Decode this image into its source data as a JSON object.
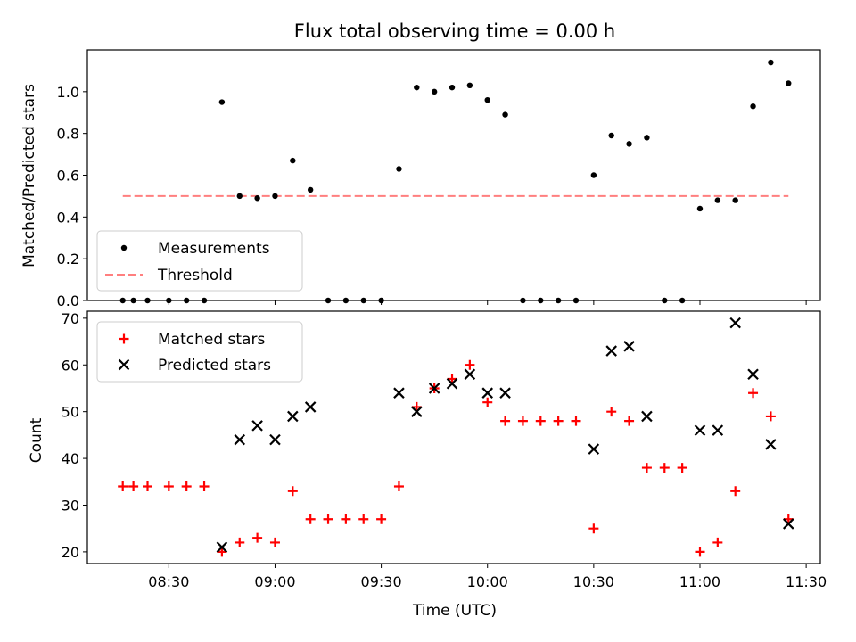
{
  "title": "Flux total observing time = 0.00 h",
  "chart_data": [
    {
      "type": "scatter",
      "panel": "top",
      "ylabel": "Matched/Predicted stars",
      "xlabel": "",
      "x_ticks": [
        "08:30",
        "09:00",
        "09:30",
        "10:00",
        "10:30",
        "11:00",
        "11:30"
      ],
      "x_tick_labels_visible": false,
      "xlim": [
        "08:07",
        "11:34"
      ],
      "ylim": [
        0,
        1.2
      ],
      "y_ticks": [
        "0.0",
        "0.2",
        "0.4",
        "0.6",
        "0.8",
        "1.0"
      ],
      "grid": false,
      "legend_position": "lower-left",
      "colors": {
        "measurements": "#000000",
        "threshold": "#ff7f7f"
      },
      "series": [
        {
          "name": "Measurements",
          "marker": "dot",
          "x": [
            "08:17",
            "08:20",
            "08:24",
            "08:30",
            "08:35",
            "08:40",
            "08:45",
            "08:50",
            "08:55",
            "09:00",
            "09:05",
            "09:10",
            "09:15",
            "09:20",
            "09:25",
            "09:30",
            "09:35",
            "09:40",
            "09:45",
            "09:50",
            "09:55",
            "10:00",
            "10:05",
            "10:10",
            "10:15",
            "10:20",
            "10:25",
            "10:30",
            "10:35",
            "10:40",
            "10:45",
            "10:50",
            "10:55",
            "11:00",
            "11:05",
            "11:10",
            "11:15",
            "11:20",
            "11:25"
          ],
          "y": [
            0.0,
            0.0,
            0.0,
            0.0,
            0.0,
            0.0,
            0.95,
            0.5,
            0.49,
            0.5,
            0.67,
            0.53,
            0.0,
            0.0,
            0.0,
            0.0,
            0.63,
            1.02,
            1.0,
            1.02,
            1.03,
            0.96,
            0.89,
            0.0,
            0.0,
            0.0,
            0.0,
            0.6,
            0.79,
            0.75,
            0.78,
            0.0,
            0.0,
            0.44,
            0.48,
            0.48,
            0.93,
            1.14,
            1.04
          ]
        },
        {
          "name": "Threshold",
          "line": "dashed",
          "x": [
            "08:17",
            "11:25"
          ],
          "y": [
            0.5,
            0.5
          ]
        }
      ]
    },
    {
      "type": "scatter",
      "panel": "bottom",
      "ylabel": "Count",
      "xlabel": "Time (UTC)",
      "x_ticks": [
        "08:30",
        "09:00",
        "09:30",
        "10:00",
        "10:30",
        "11:00",
        "11:30"
      ],
      "xlim": [
        "08:07",
        "11:34"
      ],
      "ylim": [
        17.5,
        71.5
      ],
      "y_ticks": [
        "20",
        "30",
        "40",
        "50",
        "60",
        "70"
      ],
      "grid": false,
      "legend_position": "top-left",
      "colors": {
        "matched": "#ff0000",
        "predicted": "#000000"
      },
      "series": [
        {
          "name": "Matched stars",
          "marker": "plus",
          "x": [
            "08:17",
            "08:20",
            "08:24",
            "08:30",
            "08:35",
            "08:40",
            "08:45",
            "08:50",
            "08:55",
            "09:00",
            "09:05",
            "09:10",
            "09:15",
            "09:20",
            "09:25",
            "09:30",
            "09:35",
            "09:40",
            "09:45",
            "09:50",
            "09:55",
            "10:00",
            "10:05",
            "10:10",
            "10:15",
            "10:20",
            "10:25",
            "10:30",
            "10:35",
            "10:40",
            "10:45",
            "10:50",
            "10:55",
            "11:00",
            "11:05",
            "11:10",
            "11:15",
            "11:20",
            "11:25"
          ],
          "y": [
            34,
            34,
            34,
            34,
            34,
            34,
            20,
            22,
            23,
            22,
            33,
            27,
            27,
            27,
            27,
            27,
            34,
            51,
            55,
            57,
            60,
            52,
            48,
            48,
            48,
            48,
            48,
            25,
            50,
            48,
            38,
            38,
            38,
            20,
            22,
            33,
            54,
            49,
            27
          ]
        },
        {
          "name": "Predicted stars",
          "marker": "x",
          "x": [
            "08:45",
            "08:50",
            "08:55",
            "09:00",
            "09:05",
            "09:10",
            "09:35",
            "09:40",
            "09:45",
            "09:50",
            "09:55",
            "10:00",
            "10:05",
            "10:30",
            "10:35",
            "10:40",
            "10:45",
            "11:00",
            "11:05",
            "11:10",
            "11:15",
            "11:20",
            "11:25"
          ],
          "y": [
            21,
            44,
            47,
            44,
            49,
            51,
            54,
            50,
            55,
            56,
            58,
            54,
            54,
            42,
            63,
            64,
            49,
            46,
            46,
            69,
            58,
            43,
            26
          ]
        }
      ]
    }
  ]
}
